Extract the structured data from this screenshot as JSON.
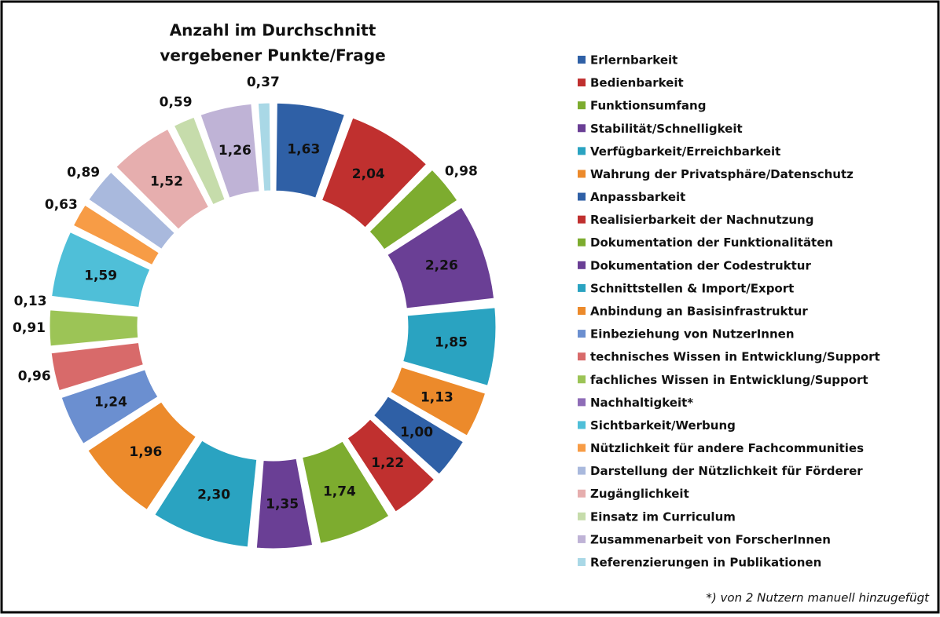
{
  "chart_data": {
    "type": "donut",
    "title": [
      "Anzahl im Durchschnitt",
      "vergebener Punkte/Frage"
    ],
    "categories": [
      "Erlernbarkeit",
      "Bedienbarkeit",
      "Funktionsumfang",
      "Stabilität/Schnelligkeit",
      "Verfügbarkeit/Erreichbarkeit",
      "Wahrung der Privatsphäre/Datenschutz",
      "Anpassbarkeit",
      "Realisierbarkeit der Nachnutzung",
      "Dokumentation der Funktionalitäten",
      "Dokumentation der Codestruktur",
      "Schnittstellen & Import/Export",
      "Anbindung an Basisinfrastruktur",
      "Einbeziehung von NutzerInnen",
      "technisches Wissen in Entwicklung/Support",
      "fachliches Wissen in Entwicklung/Support",
      "Nachhaltigkeit*",
      "Sichtbarkeit/Werbung",
      "Nützlichkeit für andere Fachcommunities",
      "Darstellung der Nützlichkeit für Förderer",
      "Zugänglichkeit",
      "Einsatz im Curriculum",
      "Zusammenarbeit von ForscherInnen",
      "Referenzierungen in Publikationen"
    ],
    "values": [
      1.63,
      2.04,
      0.98,
      2.26,
      1.85,
      1.13,
      1.0,
      1.22,
      1.74,
      1.35,
      2.3,
      1.96,
      1.24,
      0.96,
      0.91,
      0.13,
      1.59,
      0.63,
      0.89,
      1.52,
      0.59,
      1.26,
      0.37
    ],
    "value_labels": [
      "1,63",
      "2,04",
      "0,98",
      "2,26",
      "1,85",
      "1,13",
      "1,00",
      "1,22",
      "1,74",
      "1,35",
      "2,30",
      "1,96",
      "1,24",
      "0,96",
      "0,91",
      "0,13",
      "1,59",
      "0,63",
      "0,89",
      "1,52",
      "0,59",
      "1,26",
      "0,37"
    ],
    "colors": [
      "#2f60a6",
      "#c0302f",
      "#7dac2f",
      "#6a3f95",
      "#2aa3c1",
      "#ec8a2b",
      "#2f60a6",
      "#c0302f",
      "#7dac2f",
      "#6a3f95",
      "#2aa3c1",
      "#ec8a2b",
      "#6b8fd0",
      "#d86a6a",
      "#9cc456",
      "#8e6cb7",
      "#4fbfd8",
      "#f79c46",
      "#a9b9dd",
      "#e6aeae",
      "#c6dcab",
      "#bfb3d6",
      "#a9d8e6"
    ],
    "legend": "right",
    "footnote": "*) von 2 Nutzern manuell hinzugefügt"
  }
}
